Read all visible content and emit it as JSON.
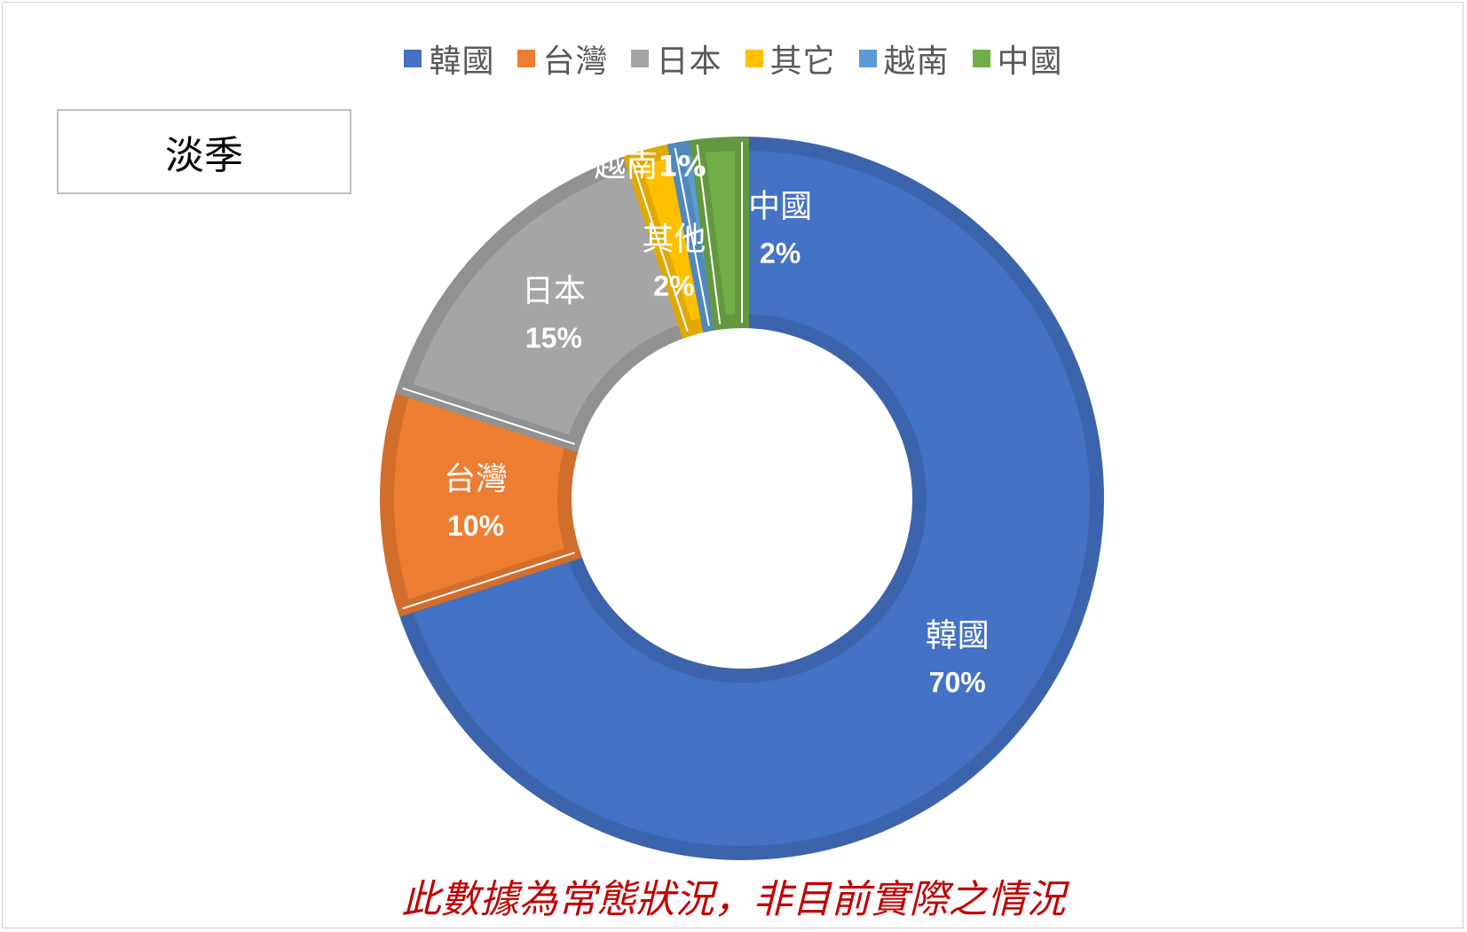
{
  "chart_data": {
    "type": "pie",
    "donut": true,
    "categories": [
      "韓國",
      "台灣",
      "日本",
      "其它",
      "越南",
      "中國"
    ],
    "values": [
      70,
      10,
      15,
      2,
      1,
      2
    ],
    "colors": [
      "#4472C4",
      "#ED7D31",
      "#A5A5A5",
      "#FFC000",
      "#5B9BD5",
      "#70AD47"
    ],
    "legend_position": "top",
    "slices": [
      {
        "name": "韓國",
        "label": "韓國",
        "percent": "70%"
      },
      {
        "name": "台灣",
        "label": "台灣",
        "percent": "10%"
      },
      {
        "name": "日本",
        "label": "日本",
        "percent": "15%"
      },
      {
        "name": "其它",
        "label": "其他",
        "percent": "2%"
      },
      {
        "name": "越南",
        "label": "越南",
        "percent": "1%"
      },
      {
        "name": "中國",
        "label": "中國",
        "percent": "2%"
      }
    ]
  },
  "legend": [
    "韓國",
    "台灣",
    "日本",
    "其它",
    "越南",
    "中國"
  ],
  "season_label": "淡季",
  "footnote": "此數據為常態狀況，非目前實際之情況"
}
